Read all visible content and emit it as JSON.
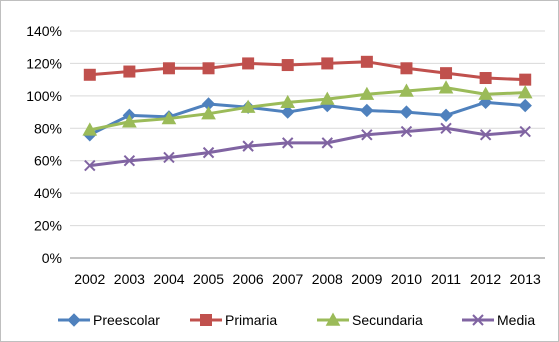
{
  "chart_data": {
    "type": "line",
    "title": "",
    "xlabel": "",
    "ylabel": "",
    "categories": [
      "2002",
      "2003",
      "2004",
      "2005",
      "2006",
      "2007",
      "2008",
      "2009",
      "2010",
      "2011",
      "2012",
      "2013"
    ],
    "ylim": [
      0,
      140
    ],
    "y_ticks": [
      "0%",
      "20%",
      "40%",
      "60%",
      "80%",
      "100%",
      "120%",
      "140%"
    ],
    "grid": "horizontal",
    "legend_position": "bottom",
    "series": [
      {
        "name": "Preescolar",
        "color": "#4f81bd",
        "marker": "diamond",
        "values": [
          76,
          88,
          87,
          95,
          93,
          90,
          94,
          91,
          90,
          88,
          96,
          94
        ]
      },
      {
        "name": "Primaria",
        "color": "#c0504d",
        "marker": "square",
        "values": [
          113,
          115,
          117,
          117,
          120,
          119,
          120,
          121,
          117,
          114,
          111,
          110
        ]
      },
      {
        "name": "Secundaria",
        "color": "#9bbb59",
        "marker": "triangle",
        "values": [
          79,
          84,
          86,
          89,
          93,
          96,
          98,
          101,
          103,
          105,
          101,
          102
        ]
      },
      {
        "name": "Media",
        "color": "#8064a2",
        "marker": "x",
        "values": [
          57,
          60,
          62,
          65,
          69,
          71,
          71,
          76,
          78,
          80,
          76,
          78
        ]
      }
    ]
  }
}
